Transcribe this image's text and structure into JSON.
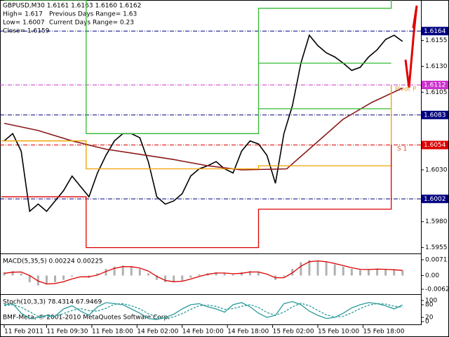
{
  "chart_data": [
    {
      "type": "line",
      "title": "GBPUSD,M30 1.6161 1.6163 1.6160 1.6162",
      "info": [
        "High= 1.617",
        "Previous Days Range= 1.63",
        "Low= 1.6007",
        "Current Days Range= 0.23",
        "Close= 1.6159"
      ],
      "annotations": [
        "Pivot P",
        "S 1"
      ],
      "xlim": [
        -1,
        147
      ],
      "ylim": [
        1.595,
        1.6194
      ],
      "yticks": [
        {
          "value": 1.6155,
          "label": "1.6155"
        },
        {
          "value": 1.613,
          "label": "1.6130"
        },
        {
          "value": 1.6105,
          "label": "1.6105"
        },
        {
          "value": 1.603,
          "label": "1.6030"
        },
        {
          "value": 1.598,
          "label": "1.5980"
        },
        {
          "value": 1.5955,
          "label": "1.5955"
        }
      ],
      "levels": [
        {
          "value": 1.6164,
          "color": "#000080"
        },
        {
          "value": 1.6112,
          "color": "#cc33cc"
        },
        {
          "value": 1.6083,
          "color": "#000080"
        },
        {
          "value": 1.6054,
          "color": "#dd0000"
        },
        {
          "value": 1.6002,
          "color": "#000080"
        }
      ],
      "x": [
        0,
        3,
        6,
        9,
        12,
        15,
        18,
        21,
        24,
        27,
        30,
        33,
        36,
        39,
        42,
        45,
        48,
        51,
        54,
        57,
        60,
        63,
        66,
        69,
        72,
        75,
        78,
        81,
        84,
        87,
        90,
        93,
        96,
        99,
        102,
        105,
        108,
        111,
        114,
        117,
        120,
        123,
        126,
        129,
        132,
        135,
        138,
        141
      ],
      "series": [
        {
          "color": "#000000",
          "values": [
            1.6058,
            1.6065,
            1.6048,
            1.599,
            1.5997,
            1.599,
            1.6,
            1.601,
            1.6024,
            1.6014,
            1.6004,
            1.6027,
            1.6044,
            1.6058,
            1.6065,
            1.6065,
            1.6061,
            1.6038,
            1.6004,
            1.5997,
            1.6,
            1.6007,
            1.6024,
            1.6031,
            1.6034,
            1.6038,
            1.6031,
            1.6027,
            1.6048,
            1.6058,
            1.6055,
            1.6044,
            1.6017,
            1.6065,
            1.6092,
            1.6133,
            1.616,
            1.615,
            1.6143,
            1.6139,
            1.6133,
            1.6126,
            1.6129,
            1.6139,
            1.6146,
            1.6156,
            1.616,
            1.6154
          ]
        },
        {
          "color": "#8b1a1a",
          "x": [
            0,
            12,
            24,
            36,
            48,
            60,
            72,
            84,
            100,
            110,
            120,
            130,
            141
          ],
          "values": [
            1.6075,
            1.6068,
            1.6058,
            1.605,
            1.6045,
            1.604,
            1.6034,
            1.603,
            1.6031,
            1.6055,
            1.6079,
            1.6095,
            1.6109
          ]
        },
        {
          "color": "#33bb33",
          "x": [
            0,
            29,
            29,
            90,
            90,
            137,
            137
          ],
          "values": [
            1.6194,
            1.6194,
            1.6065,
            1.6065,
            1.6186,
            1.6186,
            1.6194
          ]
        },
        {
          "color": "#33bb33",
          "x": [
            90,
            137
          ],
          "values": [
            1.6133,
            1.6133
          ]
        },
        {
          "color": "#33bb33",
          "x": [
            90,
            137
          ],
          "values": [
            1.6089,
            1.6089
          ]
        },
        {
          "color": "#f0a000",
          "x": [
            -1,
            29,
            29,
            90,
            90,
            137,
            137
          ],
          "values": [
            1.6058,
            1.6058,
            1.6031,
            1.6031,
            1.6034,
            1.6034,
            1.6112
          ]
        },
        {
          "color": "#dd0000",
          "x": [
            -1,
            29,
            29,
            90,
            90,
            137,
            137
          ],
          "values": [
            1.6004,
            1.6004,
            1.5955,
            1.5955,
            1.5992,
            1.5992,
            1.6054
          ]
        }
      ]
    },
    {
      "type": "bar",
      "title": "MACD(5,35,5) 0.00224 0.00225",
      "xlim": [
        -1,
        147
      ],
      "ylim": [
        -0.0081,
        0.009
      ],
      "yticks": [
        {
          "value": 0.00711,
          "label": "0.00711"
        },
        {
          "value": 0,
          "label": "0.00"
        },
        {
          "value": -0.00621,
          "label": "-0.00621"
        }
      ],
      "x": [
        0,
        3,
        6,
        9,
        12,
        15,
        18,
        21,
        24,
        27,
        30,
        33,
        36,
        39,
        42,
        45,
        48,
        51,
        54,
        57,
        60,
        63,
        66,
        69,
        72,
        75,
        78,
        81,
        84,
        87,
        90,
        93,
        96,
        99,
        102,
        105,
        108,
        111,
        114,
        117,
        120,
        123,
        126,
        129,
        132,
        135,
        138,
        141
      ],
      "series": [
        {
          "kind": "bar",
          "color": "#b0b0b0",
          "values": [
            0.0015,
            0.002,
            0.001,
            -0.003,
            -0.0045,
            -0.004,
            -0.003,
            -0.002,
            -0.0005,
            0,
            -0.001,
            0.001,
            0.003,
            0.004,
            0.0045,
            0.004,
            0.003,
            0.001,
            -0.002,
            -0.003,
            -0.003,
            -0.0025,
            -0.001,
            0.0005,
            0.001,
            0.0015,
            0.001,
            0.0005,
            0.0015,
            0.002,
            0.0015,
            0,
            -0.002,
            -0.0005,
            0.003,
            0.006,
            0.007,
            0.0068,
            0.006,
            0.005,
            0.004,
            0.003,
            0.0025,
            0.0028,
            0.003,
            0.0028,
            0.0025,
            0.0022
          ]
        },
        {
          "kind": "line",
          "color": "#dd0000",
          "values": [
            0.001,
            0.0015,
            0.0016,
            0,
            -0.0025,
            -0.0038,
            -0.0036,
            -0.0028,
            -0.0015,
            -0.0006,
            -0.0006,
            0.0002,
            0.0018,
            0.0032,
            0.004,
            0.004,
            0.0034,
            0.002,
            -0.0004,
            -0.0022,
            -0.0028,
            -0.0026,
            -0.0016,
            -0.0004,
            0.0005,
            0.0011,
            0.0011,
            0.0008,
            0.001,
            0.0016,
            0.0016,
            0.0006,
            -0.001,
            -0.001,
            0.0012,
            0.0042,
            0.0062,
            0.0066,
            0.0062,
            0.0054,
            0.0045,
            0.0035,
            0.0028,
            0.0027,
            0.0029,
            0.0028,
            0.0026,
            0.0023
          ]
        }
      ]
    },
    {
      "type": "line",
      "title": "Stoch(10,3,3) 78.4314 67.9469",
      "copyright": "BMF-Meta, © 2001-2010 MetaQuotes Software Corp.",
      "xlim": [
        -1,
        147
      ],
      "ylim": [
        -13,
        120
      ],
      "yticks": [
        100,
        80,
        20,
        0
      ],
      "xticks": [
        {
          "value": 0,
          "label": "11 Feb 2011"
        },
        {
          "value": 15,
          "label": "11 Feb 09:30"
        },
        {
          "value": 31,
          "label": "11 Feb 18:00"
        },
        {
          "value": 47,
          "label": "14 Feb 02:00"
        },
        {
          "value": 63,
          "label": "14 Feb 10:00"
        },
        {
          "value": 79,
          "label": "14 Feb 18:00"
        },
        {
          "value": 95,
          "label": "15 Feb 02:00"
        },
        {
          "value": 111,
          "label": "15 Feb 10:00"
        },
        {
          "value": 127,
          "label": "15 Feb 18:00"
        }
      ],
      "x": [
        0,
        3,
        6,
        9,
        12,
        15,
        18,
        21,
        24,
        27,
        30,
        33,
        36,
        39,
        42,
        45,
        48,
        51,
        54,
        57,
        60,
        63,
        66,
        69,
        72,
        75,
        78,
        81,
        84,
        87,
        90,
        93,
        96,
        99,
        102,
        105,
        108,
        111,
        114,
        117,
        120,
        123,
        126,
        129,
        132,
        135,
        138,
        141
      ],
      "series": [
        {
          "color": "#2a9a9a",
          "values": [
            80,
            85,
            40,
            15,
            20,
            30,
            25,
            60,
            75,
            50,
            30,
            70,
            90,
            85,
            80,
            60,
            40,
            15,
            10,
            20,
            35,
            60,
            80,
            85,
            70,
            60,
            45,
            80,
            90,
            70,
            40,
            20,
            30,
            85,
            95,
            80,
            50,
            30,
            15,
            20,
            40,
            65,
            80,
            90,
            85,
            75,
            60,
            78.4314
          ]
        },
        {
          "color": "#2a9a9a",
          "dash": true,
          "values": [
            75,
            80,
            68,
            47,
            25,
            22,
            25,
            38,
            53,
            62,
            52,
            50,
            63,
            82,
            85,
            75,
            60,
            38,
            22,
            15,
            22,
            38,
            58,
            75,
            78,
            72,
            58,
            62,
            72,
            80,
            67,
            43,
            30,
            45,
            70,
            87,
            75,
            53,
            32,
            22,
            25,
            42,
            62,
            78,
            85,
            83,
            73,
            67.9469
          ]
        }
      ]
    }
  ]
}
